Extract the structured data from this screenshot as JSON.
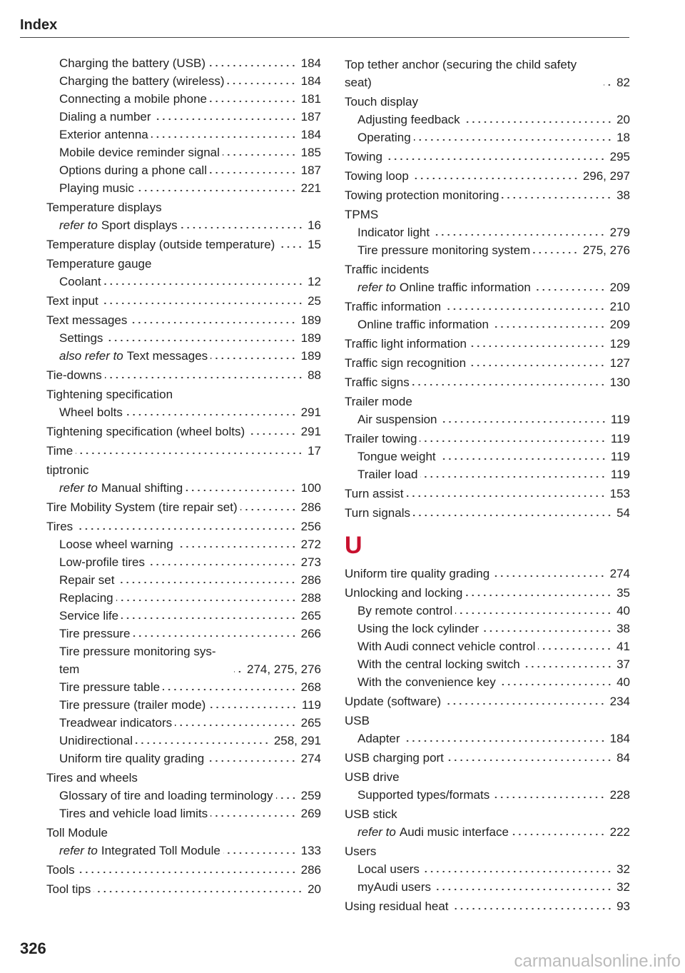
{
  "header": {
    "title": "Index"
  },
  "columns": [
    {
      "items": [
        {
          "level": 1,
          "text": "Charging the battery (USB)",
          "pages": "184"
        },
        {
          "level": 1,
          "text": "Charging the battery (wireless)",
          "pages": "184"
        },
        {
          "level": 1,
          "text": "Connecting a mobile phone",
          "pages": "181"
        },
        {
          "level": 1,
          "text": "Dialing a number",
          "pages": "187"
        },
        {
          "level": 1,
          "text": "Exterior antenna",
          "pages": "184"
        },
        {
          "level": 1,
          "text": "Mobile device reminder signal",
          "pages": "185"
        },
        {
          "level": 1,
          "text": "Options during a phone call",
          "pages": "187"
        },
        {
          "level": 1,
          "text": "Playing music",
          "pages": "221"
        },
        {
          "level": 0,
          "text": "Temperature displays"
        },
        {
          "level": 1,
          "prefix": "refer to",
          "text": "Sport displays",
          "pages": "16"
        },
        {
          "level": 0,
          "text": "Temperature display (outside temperature)",
          "pages": "15"
        },
        {
          "level": 0,
          "text": "Temperature gauge"
        },
        {
          "level": 1,
          "text": "Coolant",
          "pages": "12"
        },
        {
          "level": 0,
          "text": "Text input",
          "pages": "25"
        },
        {
          "level": 0,
          "text": "Text messages",
          "pages": "189"
        },
        {
          "level": 1,
          "text": "Settings",
          "pages": "189"
        },
        {
          "level": 1,
          "prefix": "also refer to",
          "text": "Text messages",
          "pages": "189"
        },
        {
          "level": 0,
          "text": "Tie-downs",
          "pages": "88"
        },
        {
          "level": 0,
          "text": "Tightening specification"
        },
        {
          "level": 1,
          "text": "Wheel bolts",
          "pages": "291"
        },
        {
          "level": 0,
          "text": "Tightening specification (wheel bolts)",
          "pages": "291"
        },
        {
          "level": 0,
          "text": "Time",
          "pages": "17"
        },
        {
          "level": 0,
          "text": "tiptronic"
        },
        {
          "level": 1,
          "prefix": "refer to",
          "text": "Manual shifting",
          "pages": "100"
        },
        {
          "level": 0,
          "text": "Tire Mobility System (tire repair set)",
          "pages": "286"
        },
        {
          "level": 0,
          "text": "Tires",
          "pages": "256"
        },
        {
          "level": 1,
          "text": "Loose wheel warning",
          "pages": "272"
        },
        {
          "level": 1,
          "text": "Low-profile tires",
          "pages": "273"
        },
        {
          "level": 1,
          "text": "Repair set",
          "pages": "286"
        },
        {
          "level": 1,
          "text": "Replacing",
          "pages": "288"
        },
        {
          "level": 1,
          "text": "Service life",
          "pages": "265"
        },
        {
          "level": 1,
          "text": "Tire pressure",
          "pages": "266"
        },
        {
          "level": 1,
          "text": "Tire pressure monitoring sys- tem",
          "pages": "274, 275, 276"
        },
        {
          "level": 1,
          "text": "Tire pressure table",
          "pages": "268"
        },
        {
          "level": 1,
          "text": "Tire pressure (trailer mode)",
          "pages": "119"
        },
        {
          "level": 1,
          "text": "Treadwear indicators",
          "pages": "265"
        },
        {
          "level": 1,
          "text": "Unidirectional",
          "pages": "258, 291"
        },
        {
          "level": 1,
          "text": "Uniform tire quality grading",
          "pages": "274"
        },
        {
          "level": 0,
          "text": "Tires and wheels"
        },
        {
          "level": 1,
          "text": "Glossary of tire and loading terminology",
          "pages": "259"
        },
        {
          "level": 1,
          "text": "Tires and vehicle load limits",
          "pages": "269"
        },
        {
          "level": 0,
          "text": "Toll Module"
        },
        {
          "level": 1,
          "prefix": "refer to",
          "text": "Integrated Toll Module",
          "pages": "133"
        },
        {
          "level": 0,
          "text": "Tools",
          "pages": "286"
        },
        {
          "level": 0,
          "text": "Tool tips",
          "pages": "20"
        }
      ]
    },
    {
      "items": [
        {
          "level": 0,
          "text": "Top tether anchor (securing the child safety seat)",
          "pages": "82"
        },
        {
          "level": 0,
          "text": "Touch display"
        },
        {
          "level": 1,
          "text": "Adjusting feedback",
          "pages": "20"
        },
        {
          "level": 1,
          "text": "Operating",
          "pages": "18"
        },
        {
          "level": 0,
          "text": "Towing",
          "pages": "295"
        },
        {
          "level": 0,
          "text": "Towing loop",
          "pages": "296, 297"
        },
        {
          "level": 0,
          "text": "Towing protection monitoring",
          "pages": "38"
        },
        {
          "level": 0,
          "text": "TPMS"
        },
        {
          "level": 1,
          "text": "Indicator light",
          "pages": "279"
        },
        {
          "level": 1,
          "text": "Tire pressure monitoring system",
          "pages": "275, 276"
        },
        {
          "level": 0,
          "text": "Traffic incidents"
        },
        {
          "level": 1,
          "prefix": "refer to",
          "text": "Online traffic information",
          "pages": "209"
        },
        {
          "level": 0,
          "text": "Traffic information",
          "pages": "210"
        },
        {
          "level": 1,
          "text": "Online traffic information",
          "pages": "209"
        },
        {
          "level": 0,
          "text": "Traffic light information",
          "pages": "129"
        },
        {
          "level": 0,
          "text": "Traffic sign recognition",
          "pages": "127"
        },
        {
          "level": 0,
          "text": "Traffic signs",
          "pages": "130"
        },
        {
          "level": 0,
          "text": "Trailer mode"
        },
        {
          "level": 1,
          "text": "Air suspension",
          "pages": "119"
        },
        {
          "level": 0,
          "text": "Trailer towing",
          "pages": "119"
        },
        {
          "level": 1,
          "text": "Tongue weight",
          "pages": "119"
        },
        {
          "level": 1,
          "text": "Trailer load",
          "pages": "119"
        },
        {
          "level": 0,
          "text": "Turn assist",
          "pages": "153"
        },
        {
          "level": 0,
          "text": "Turn signals",
          "pages": "54"
        },
        {
          "letter": "U"
        },
        {
          "level": 0,
          "text": "Uniform tire quality grading",
          "pages": "274"
        },
        {
          "level": 0,
          "text": "Unlocking and locking",
          "pages": "35"
        },
        {
          "level": 1,
          "text": "By remote control",
          "pages": "40"
        },
        {
          "level": 1,
          "text": "Using the lock cylinder",
          "pages": "38"
        },
        {
          "level": 1,
          "text": "With Audi connect vehicle control",
          "pages": "41"
        },
        {
          "level": 1,
          "text": "With the central locking switch",
          "pages": "37"
        },
        {
          "level": 1,
          "text": "With the convenience key",
          "pages": "40"
        },
        {
          "level": 0,
          "text": "Update (software)",
          "pages": "234"
        },
        {
          "level": 0,
          "text": "USB"
        },
        {
          "level": 1,
          "text": "Adapter",
          "pages": "184"
        },
        {
          "level": 0,
          "text": "USB charging port",
          "pages": "84"
        },
        {
          "level": 0,
          "text": "USB drive"
        },
        {
          "level": 1,
          "text": "Supported types/formats",
          "pages": "228"
        },
        {
          "level": 0,
          "text": "USB stick"
        },
        {
          "level": 1,
          "prefix": "refer to",
          "text": "Audi music interface",
          "pages": "222"
        },
        {
          "level": 0,
          "text": "Users"
        },
        {
          "level": 1,
          "text": "Local users",
          "pages": "32"
        },
        {
          "level": 1,
          "text": "myAudi users",
          "pages": "32"
        },
        {
          "level": 0,
          "text": "Using residual heat",
          "pages": "93"
        }
      ]
    }
  ],
  "footer": {
    "page_number": "326",
    "watermark": "carmanualsonline.info"
  }
}
